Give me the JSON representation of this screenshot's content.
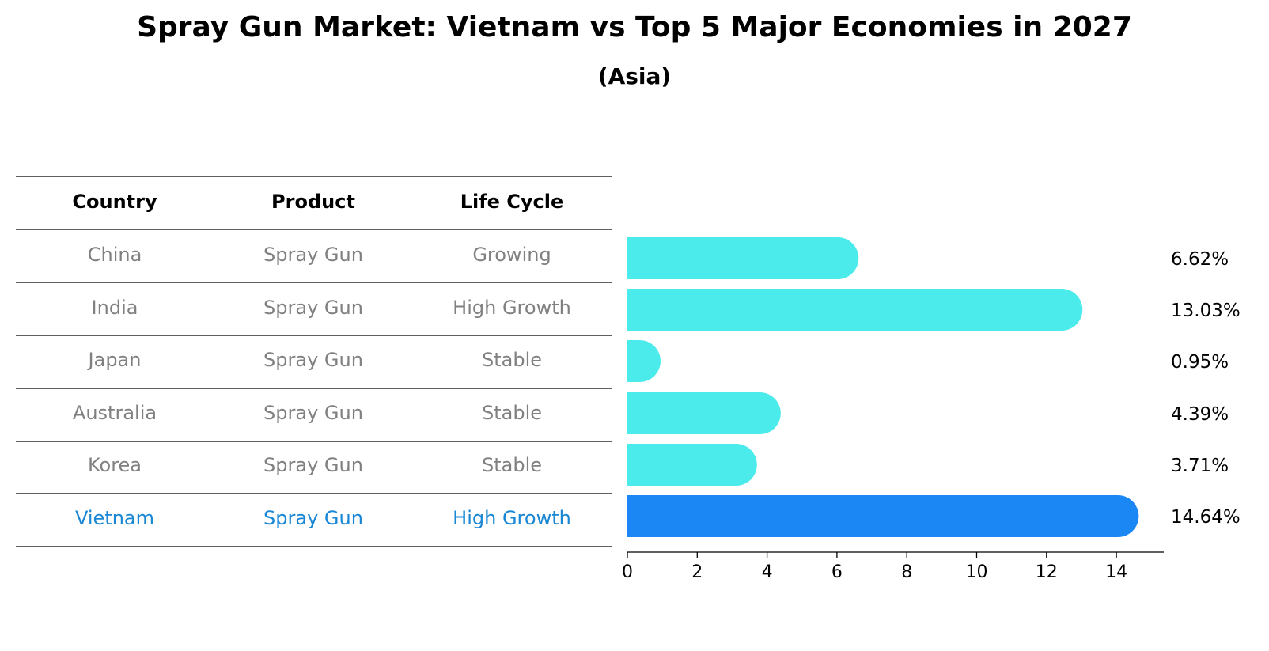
{
  "title": "Spray Gun Market: Vietnam vs Top 5 Major Economies in 2027",
  "subtitle": "(Asia)",
  "colors": {
    "bar_default": "#4BEBEB",
    "bar_highlight": "#1A87F5",
    "text_default": "#808080",
    "text_highlight": "#1A87D4"
  },
  "table": {
    "headers": [
      "Country",
      "Product",
      "Life Cycle"
    ],
    "rows": [
      {
        "country": "China",
        "product": "Spray Gun",
        "life_cycle": "Growing",
        "highlight": false
      },
      {
        "country": "India",
        "product": "Spray Gun",
        "life_cycle": "High Growth",
        "highlight": false
      },
      {
        "country": "Japan",
        "product": "Spray Gun",
        "life_cycle": "Stable",
        "highlight": false
      },
      {
        "country": "Australia",
        "product": "Spray Gun",
        "life_cycle": "Stable",
        "highlight": false
      },
      {
        "country": "Korea",
        "product": "Spray Gun",
        "life_cycle": "Stable",
        "highlight": false
      },
      {
        "country": "Vietnam",
        "product": "Spray Gun",
        "life_cycle": "High Growth",
        "highlight": true
      }
    ]
  },
  "chart_data": {
    "type": "bar",
    "orientation": "horizontal",
    "categories": [
      "China",
      "India",
      "Japan",
      "Australia",
      "Korea",
      "Vietnam"
    ],
    "values": [
      6.62,
      13.03,
      0.95,
      4.39,
      3.71,
      14.64
    ],
    "value_labels": [
      "6.62%",
      "13.03%",
      "0.95%",
      "4.39%",
      "3.71%",
      "14.64%"
    ],
    "highlight_category": "Vietnam",
    "xlim": [
      0,
      15.4
    ],
    "xticks": [
      0,
      2,
      4,
      6,
      8,
      10,
      12,
      14
    ],
    "title": "Spray Gun Market: Vietnam vs Top 5 Major Economies in 2027",
    "subtitle": "(Asia)",
    "grid": false
  }
}
